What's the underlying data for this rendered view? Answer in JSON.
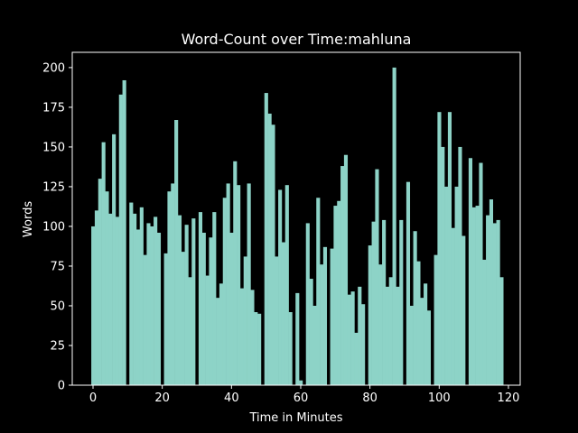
{
  "chart_data": {
    "type": "bar",
    "title": "Word-Count over Time:mahluna",
    "x_label": "Time in Minutes",
    "y_label": "Words",
    "x": [
      0,
      1,
      2,
      3,
      4,
      5,
      6,
      7,
      8,
      9,
      10,
      11,
      12,
      13,
      14,
      15,
      16,
      17,
      18,
      19,
      20,
      21,
      22,
      23,
      24,
      25,
      26,
      27,
      28,
      29,
      30,
      31,
      32,
      33,
      34,
      35,
      36,
      37,
      38,
      39,
      40,
      41,
      42,
      43,
      44,
      45,
      46,
      47,
      48,
      49,
      50,
      51,
      52,
      53,
      54,
      55,
      56,
      57,
      58,
      59,
      60,
      61,
      62,
      63,
      64,
      65,
      66,
      67,
      68,
      69,
      70,
      71,
      72,
      73,
      74,
      75,
      76,
      77,
      78,
      79,
      80,
      81,
      82,
      83,
      84,
      85,
      86,
      87,
      88,
      89,
      90,
      91,
      92,
      93,
      94,
      95,
      96,
      97,
      98,
      99,
      100,
      101,
      102,
      103,
      104,
      105,
      106,
      107,
      108,
      109,
      110,
      111,
      112,
      113,
      114,
      115,
      116,
      117,
      118
    ],
    "values": [
      100,
      110,
      130,
      153,
      122,
      108,
      158,
      106,
      183,
      192,
      0,
      115,
      108,
      98,
      112,
      82,
      102,
      100,
      106,
      96,
      0,
      83,
      122,
      127,
      167,
      107,
      84,
      101,
      68,
      105,
      0,
      109,
      96,
      69,
      93,
      109,
      55,
      64,
      118,
      127,
      96,
      141,
      126,
      61,
      81,
      127,
      60,
      46,
      45,
      0,
      184,
      171,
      164,
      81,
      123,
      90,
      126,
      46,
      0,
      58,
      3,
      0,
      102,
      67,
      50,
      118,
      76,
      87,
      0,
      86,
      113,
      116,
      138,
      145,
      57,
      59,
      33,
      62,
      51,
      0,
      88,
      103,
      136,
      76,
      104,
      62,
      68,
      200,
      62,
      104,
      0,
      128,
      50,
      97,
      78,
      55,
      64,
      47,
      0,
      82,
      172,
      150,
      125,
      172,
      99,
      125,
      150,
      94,
      0,
      143,
      112,
      113,
      140,
      79,
      107,
      117,
      102,
      104,
      68
    ],
    "color": "#8dd3c7",
    "xlim": [
      -6,
      123.4
    ],
    "ylim": [
      0,
      209.6
    ],
    "xticks": [
      0,
      20,
      40,
      60,
      80,
      100,
      120
    ],
    "yticks": [
      0,
      25,
      50,
      75,
      100,
      125,
      150,
      175,
      200
    ]
  }
}
